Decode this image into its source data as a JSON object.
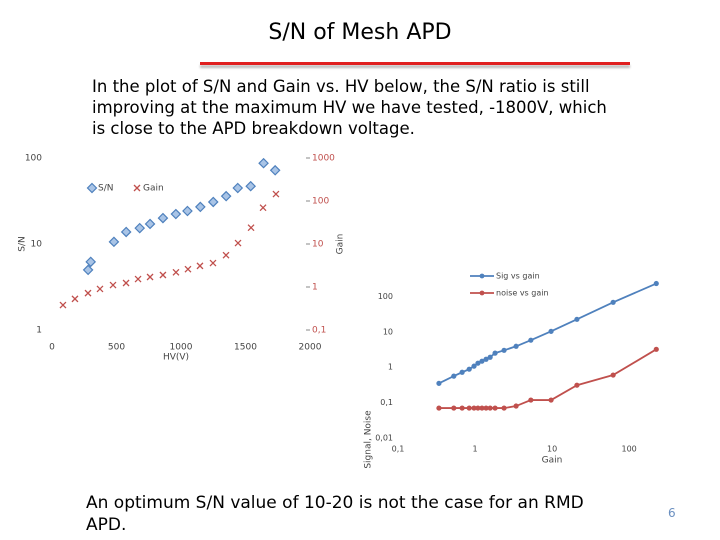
{
  "title": "S/N of Mesh APD",
  "paragraph": "In the plot of S/N and Gain vs. HV below, the S/N ratio is still improving at the maximum HV we have tested, -1800V, which is close to the APD breakdown voltage.",
  "conclusion": "An optimum S/N value of 10-20 is not the case for an RMD APD.",
  "page_number": "6",
  "chart_data": [
    {
      "type": "scatter",
      "xlabel": "HV(V)",
      "ylabel": "S/N",
      "y2label": "Gain",
      "xlim": [
        0,
        2000
      ],
      "xticks": [
        0,
        500,
        1000,
        1500,
        2000
      ],
      "ylim": [
        1,
        100
      ],
      "yticks": [
        1,
        10,
        100
      ],
      "ylog": true,
      "y2lim": [
        0.1,
        1000
      ],
      "y2ticks": [
        {
          "value": 0.1,
          "label": "0,1"
        },
        1,
        10,
        100,
        1000
      ],
      "y2log": true,
      "legend": "top-left",
      "series": [
        {
          "name": "S/N",
          "color": "#4f81bd",
          "marker": "diamond",
          "x": [
            280,
            300,
            480,
            575,
            680,
            760,
            860,
            960,
            1050,
            1150,
            1250,
            1350,
            1440,
            1540,
            1640,
            1730
          ],
          "values": [
            5.0,
            6.2,
            10.6,
            13.8,
            15.3,
            17.1,
            20,
            22.3,
            24.2,
            27,
            30.8,
            36,
            44.8,
            47,
            87,
            72
          ]
        },
        {
          "name": "Gain",
          "color": "#c0504d",
          "marker": "x",
          "axis": "y2",
          "x": [
            85,
            178,
            279,
            372,
            473,
            574,
            667,
            760,
            860,
            961,
            1054,
            1147,
            1248,
            1349,
            1442,
            1543,
            1636,
            1736
          ],
          "values": [
            0.38,
            0.53,
            0.72,
            0.9,
            1.11,
            1.24,
            1.53,
            1.71,
            1.9,
            2.2,
            2.6,
            3.1,
            3.6,
            5.5,
            10.5,
            24,
            70,
            145
          ]
        }
      ]
    },
    {
      "type": "line",
      "xlabel": "Gain",
      "ylabel": "Signal, Noise",
      "xlim": [
        0.1,
        500
      ],
      "xlog": true,
      "xticks": [
        {
          "value": 0.1,
          "label": "0,1"
        },
        1,
        10,
        100
      ],
      "ylim": [
        0.01,
        1000
      ],
      "ylog": true,
      "yticks": [
        {
          "value": 0.01,
          "label": "0,01"
        },
        {
          "value": 0.1,
          "label": "0,1"
        },
        1,
        10,
        100
      ],
      "legend": "top-right",
      "x": [
        0.34,
        0.53,
        0.68,
        0.84,
        0.97,
        1.09,
        1.23,
        1.39,
        1.57,
        1.82,
        2.38,
        3.41,
        5.3,
        9.7,
        21,
        62,
        225
      ],
      "series": [
        {
          "name": "Sig vs gain",
          "color": "#4f81bd",
          "values": [
            0.35,
            0.56,
            0.72,
            0.88,
            1.07,
            1.3,
            1.48,
            1.68,
            1.91,
            2.5,
            3.0,
            3.9,
            5.8,
            10.3,
            22.5,
            68,
            231
          ]
        },
        {
          "name": "noise vs gain",
          "color": "#c0504d",
          "values": [
            0.07,
            0.07,
            0.07,
            0.07,
            0.07,
            0.07,
            0.07,
            0.07,
            0.07,
            0.07,
            0.07,
            0.08,
            0.118,
            0.118,
            0.31,
            0.6,
            3.2
          ]
        }
      ]
    }
  ]
}
